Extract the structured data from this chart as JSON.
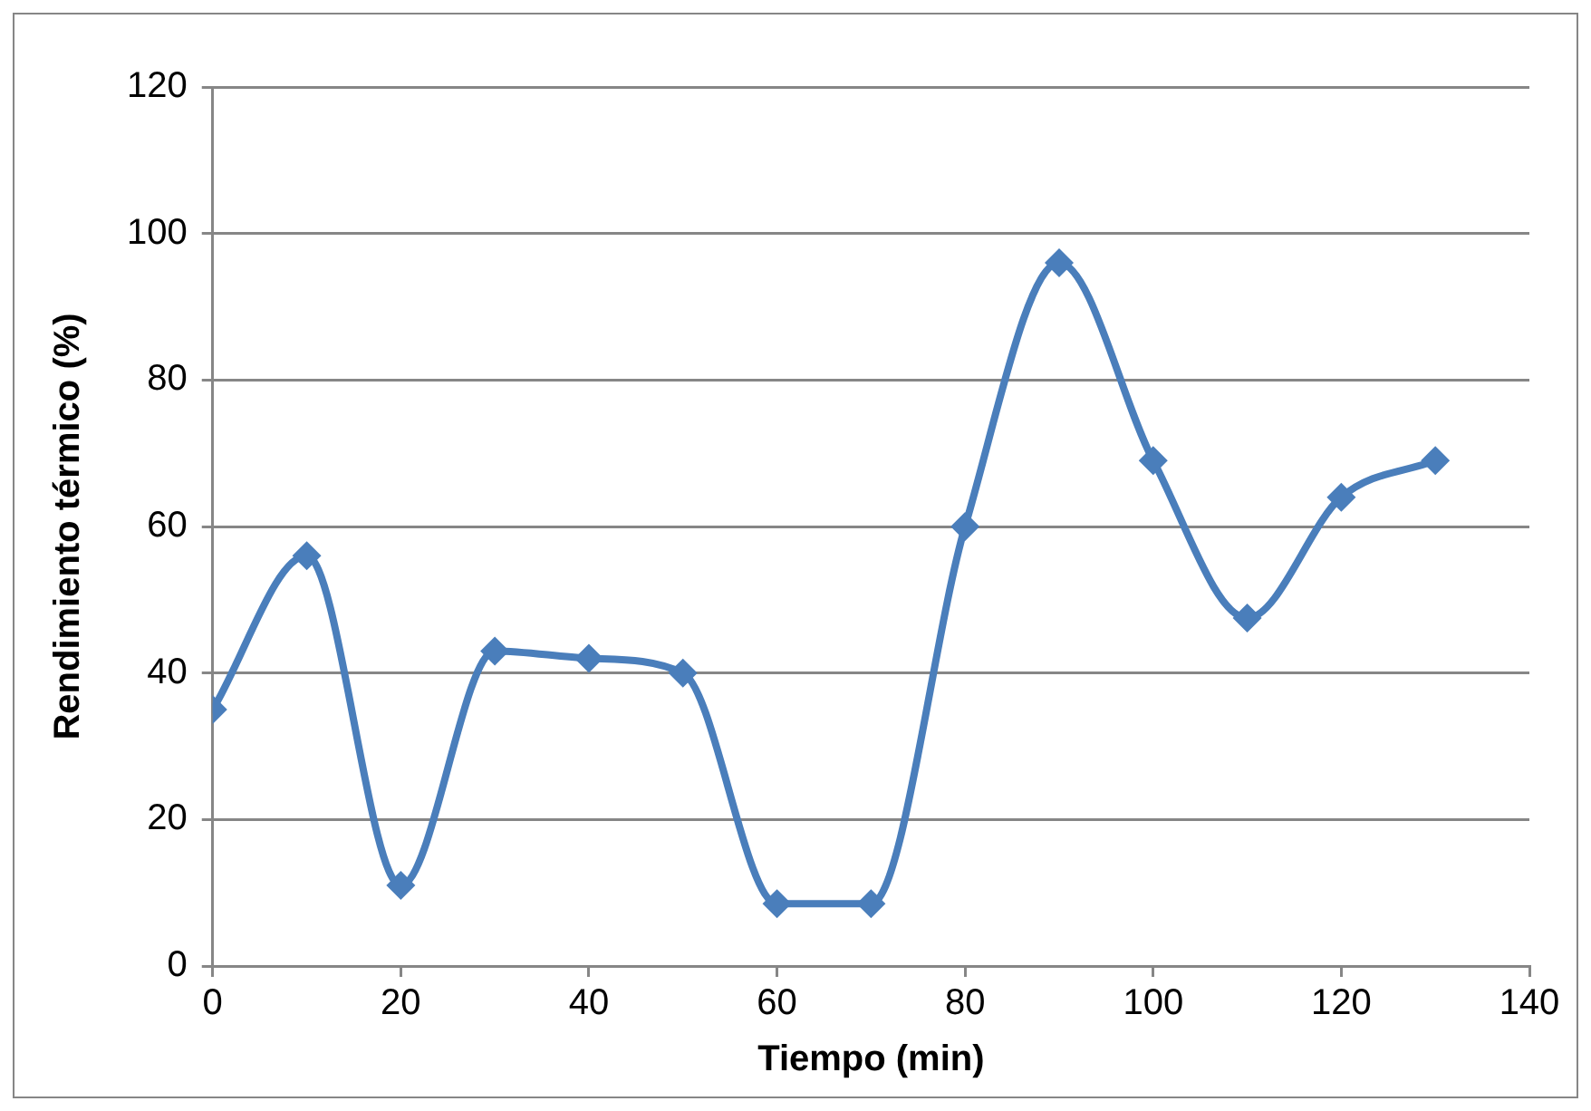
{
  "chart_data": {
    "type": "line",
    "xlabel": "Tiempo (min)",
    "ylabel": "Rendimiento térmico (%)",
    "x": [
      0,
      10,
      20,
      30,
      40,
      50,
      60,
      70,
      80,
      90,
      100,
      110,
      120,
      130
    ],
    "series": [
      {
        "color": "#4a7ebb",
        "values": [
          35,
          56,
          11,
          43,
          42,
          40,
          8.5,
          8.5,
          60,
          96,
          69,
          47.5,
          64,
          69
        ]
      }
    ],
    "xlim": [
      0,
      140
    ],
    "xticks": [
      0,
      20,
      40,
      60,
      80,
      100,
      120,
      140
    ],
    "ylim": [
      0,
      120
    ],
    "yticks": [
      0,
      20,
      40,
      60,
      80,
      100,
      120
    ],
    "grid": "y",
    "legend": false,
    "marker": "diamond",
    "line_style": "solid"
  }
}
